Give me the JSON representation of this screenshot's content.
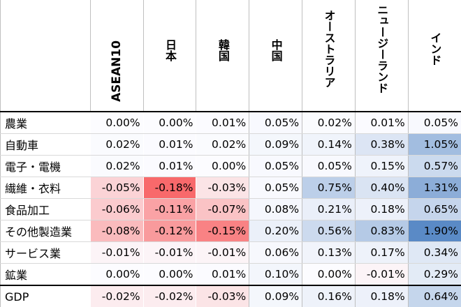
{
  "chart_data": {
    "type": "heatmap",
    "columns": [
      "ASEAN10",
      "日本",
      "韓国",
      "中国",
      "オーストラリア",
      "ニュージーランド",
      "インド"
    ],
    "rows": [
      {
        "label": "農業",
        "values": [
          0.0,
          0.0,
          0.01,
          0.05,
          0.02,
          0.01,
          0.05
        ],
        "display": [
          "0.00%",
          "0.00%",
          "0.01%",
          "0.05%",
          "0.02%",
          "0.01%",
          "0.05%"
        ]
      },
      {
        "label": "自動車",
        "values": [
          0.02,
          0.01,
          0.02,
          0.09,
          0.14,
          0.38,
          1.05
        ],
        "display": [
          "0.02%",
          "0.01%",
          "0.02%",
          "0.09%",
          "0.14%",
          "0.38%",
          "1.05%"
        ]
      },
      {
        "label": "電子・電機",
        "values": [
          0.02,
          0.01,
          0.0,
          0.05,
          0.05,
          0.15,
          0.57
        ],
        "display": [
          "0.02%",
          "0.01%",
          "0.00%",
          "0.05%",
          "0.05%",
          "0.15%",
          "0.57%"
        ]
      },
      {
        "label": "繊維・衣料",
        "values": [
          -0.05,
          -0.18,
          -0.03,
          0.05,
          0.75,
          0.4,
          1.31
        ],
        "display": [
          "-0.05%",
          "-0.18%",
          "-0.03%",
          "0.05%",
          "0.75%",
          "0.40%",
          "1.31%"
        ]
      },
      {
        "label": "食品加工",
        "values": [
          -0.06,
          -0.11,
          -0.07,
          0.08,
          0.21,
          0.18,
          0.65
        ],
        "display": [
          "-0.06%",
          "-0.11%",
          "-0.07%",
          "0.08%",
          "0.21%",
          "0.18%",
          "0.65%"
        ]
      },
      {
        "label": "その他製造業",
        "values": [
          -0.08,
          -0.12,
          -0.15,
          0.2,
          0.56,
          0.83,
          1.9
        ],
        "display": [
          "-0.08%",
          "-0.12%",
          "-0.15%",
          "0.20%",
          "0.56%",
          "0.83%",
          "1.90%"
        ]
      },
      {
        "label": "サービス業",
        "values": [
          -0.01,
          -0.01,
          -0.01,
          0.06,
          0.13,
          0.17,
          0.34
        ],
        "display": [
          "-0.01%",
          "-0.01%",
          "-0.01%",
          "0.06%",
          "0.13%",
          "0.17%",
          "0.34%"
        ]
      },
      {
        "label": "鉱業",
        "values": [
          0.0,
          0.0,
          0.01,
          0.1,
          0.0,
          -0.01,
          0.29
        ],
        "display": [
          "0.00%",
          "0.00%",
          "0.01%",
          "0.10%",
          "0.00%",
          "-0.01%",
          "0.29%"
        ]
      },
      {
        "label": "GDP",
        "values": [
          -0.02,
          -0.02,
          -0.03,
          0.09,
          0.16,
          0.18,
          0.64
        ],
        "display": [
          "-0.02%",
          "-0.02%",
          "-0.03%",
          "0.09%",
          "0.16%",
          "0.18%",
          "0.64%"
        ]
      }
    ],
    "colors": {
      "negative": "#f8696b",
      "positive": "#5a8ac6",
      "neutral": "#fcfcff"
    },
    "value_range": [
      -0.18,
      1.9
    ]
  }
}
